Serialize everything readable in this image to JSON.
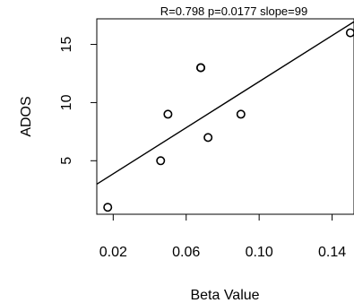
{
  "chart_data": {
    "type": "scatter",
    "title": "R=0.798 p=0.0177 slope=99",
    "xlabel": "Beta Value",
    "ylabel": "ADOS",
    "xlim": [
      0.011,
      0.152
    ],
    "ylim": [
      0.4,
      17.2
    ],
    "x_ticks": [
      0.02,
      0.06,
      0.1,
      0.14
    ],
    "x_tick_labels": [
      "0.02",
      "0.06",
      "0.10",
      "0.14"
    ],
    "y_ticks": [
      5,
      10,
      15
    ],
    "y_tick_labels": [
      "5",
      "10",
      "15"
    ],
    "grid": false,
    "legend": "none",
    "points": [
      {
        "x": 0.017,
        "y": 1
      },
      {
        "x": 0.046,
        "y": 5
      },
      {
        "x": 0.05,
        "y": 9
      },
      {
        "x": 0.068,
        "y": 13
      },
      {
        "x": 0.068,
        "y": 13
      },
      {
        "x": 0.072,
        "y": 7
      },
      {
        "x": 0.09,
        "y": 9
      },
      {
        "x": 0.15,
        "y": 16
      }
    ],
    "fit_line": {
      "slope": 99,
      "intercept": 1.9
    },
    "colors": {
      "points": "#000000",
      "line": "#000000",
      "axes": "#000000"
    }
  }
}
